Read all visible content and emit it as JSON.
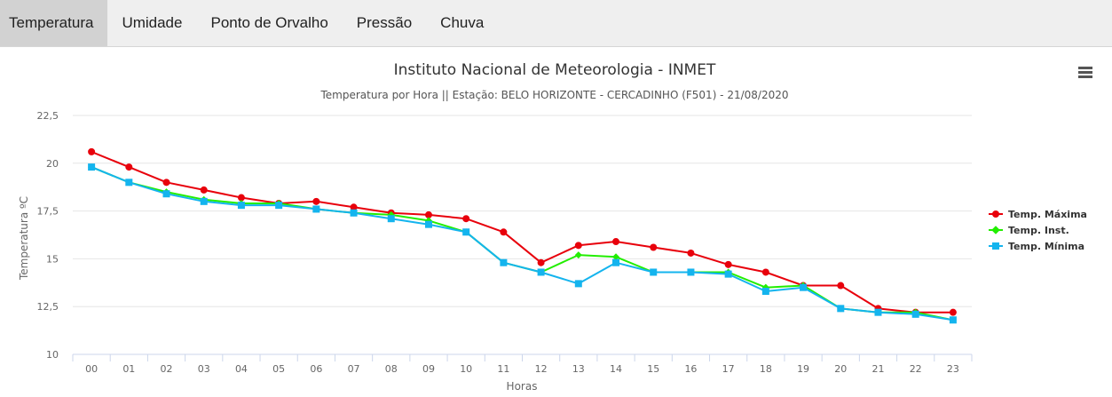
{
  "tabs": [
    {
      "label": "Temperatura",
      "active": true
    },
    {
      "label": "Umidade",
      "active": false
    },
    {
      "label": "Ponto de Orvalho",
      "active": false
    },
    {
      "label": "Pressão",
      "active": false
    },
    {
      "label": "Chuva",
      "active": false
    }
  ],
  "menu_icon": "hamburger-menu-icon",
  "chart_data": {
    "type": "line",
    "title": "Instituto Nacional de Meteorologia - INMET",
    "subtitle": "Temperatura por Hora || Estação: BELO HORIZONTE - CERCADINHO (F501) - 21/08/2020",
    "xlabel": "Horas",
    "ylabel": "Temperatura ºC",
    "categories": [
      "00",
      "01",
      "02",
      "03",
      "04",
      "05",
      "06",
      "07",
      "08",
      "09",
      "10",
      "11",
      "12",
      "13",
      "14",
      "15",
      "16",
      "17",
      "18",
      "19",
      "20",
      "21",
      "22",
      "23"
    ],
    "ylim": [
      10,
      22.5
    ],
    "yticks": [
      10,
      12.5,
      15,
      17.5,
      20,
      22.5
    ],
    "ytick_labels": [
      "10",
      "12,5",
      "15",
      "17,5",
      "20",
      "22,5"
    ],
    "grid": true,
    "legend_position": "right",
    "series": [
      {
        "name": "Temp. Máxima",
        "color": "#e8000b",
        "marker": "circle",
        "values": [
          20.6,
          19.8,
          19.0,
          18.6,
          18.2,
          17.9,
          18.0,
          17.7,
          17.4,
          17.3,
          17.1,
          16.4,
          14.8,
          15.7,
          15.9,
          15.6,
          15.3,
          14.7,
          14.3,
          13.6,
          13.6,
          12.4,
          12.2,
          12.2
        ]
      },
      {
        "name": "Temp. Inst.",
        "color": "#22ee00",
        "marker": "diamond",
        "values": [
          19.8,
          19.0,
          18.5,
          18.1,
          17.9,
          17.9,
          17.6,
          17.4,
          17.3,
          17.0,
          16.4,
          14.8,
          14.3,
          15.2,
          15.1,
          14.3,
          14.3,
          14.3,
          13.5,
          13.6,
          12.4,
          12.2,
          12.2,
          11.8
        ]
      },
      {
        "name": "Temp. Mínima",
        "color": "#14b4ee",
        "marker": "square",
        "values": [
          19.8,
          19.0,
          18.4,
          18.0,
          17.8,
          17.8,
          17.6,
          17.4,
          17.1,
          16.8,
          16.4,
          14.8,
          14.3,
          13.7,
          14.8,
          14.3,
          14.3,
          14.2,
          13.3,
          13.5,
          12.4,
          12.2,
          12.1,
          11.8
        ]
      }
    ]
  }
}
